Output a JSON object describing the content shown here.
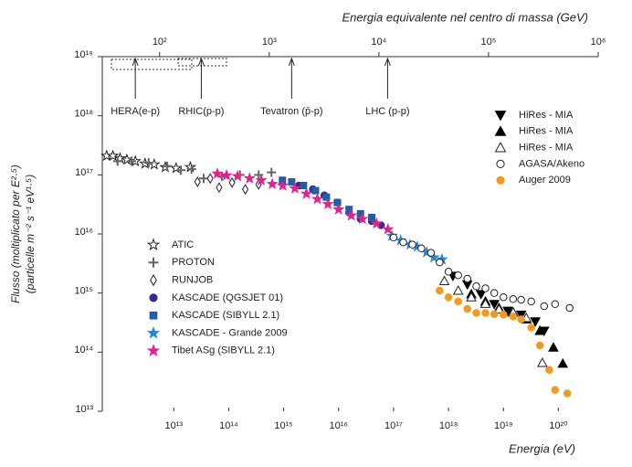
{
  "chart_data": {
    "type": "scatter",
    "x_label": "Energia (eV)",
    "x2_label": "Energia equivalente nel centro di massa (GeV)",
    "y_label": [
      "Flusso (moltiplicato per E²·⁵)",
      "(particelle m⁻² s⁻¹ eV¹·⁵)"
    ],
    "xscale": "log",
    "yscale": "log",
    "x2scale": "log",
    "xlim": [
      500000000000.0,
      5.3e+20
    ],
    "ylim": [
      10000000000000.0,
      1e+19
    ],
    "x2lim": [
      30,
      1000000.0
    ],
    "xticks": [
      {
        "value": 10000000000000.0,
        "label": "10¹³"
      },
      {
        "value": 100000000000000.0,
        "label": "10¹⁴"
      },
      {
        "value": 1000000000000000.0,
        "label": "10¹⁵"
      },
      {
        "value": 1e+16,
        "label": "10¹⁶"
      },
      {
        "value": 1e+17,
        "label": "10¹⁷"
      },
      {
        "value": 1e+18,
        "label": "10¹⁸"
      },
      {
        "value": 1e+19,
        "label": "10¹⁹"
      },
      {
        "value": 1e+20,
        "label": "10²⁰"
      }
    ],
    "yticks": [
      {
        "value": 10000000000000.0,
        "label": "10¹³"
      },
      {
        "value": 100000000000000.0,
        "label": "10¹⁴"
      },
      {
        "value": 1000000000000000.0,
        "label": "10¹⁵"
      },
      {
        "value": 1e+16,
        "label": "10¹⁶"
      },
      {
        "value": 1e+17,
        "label": "10¹⁷"
      },
      {
        "value": 1e+18,
        "label": "10¹⁸"
      },
      {
        "value": 1e+19,
        "label": "10¹⁹"
      }
    ],
    "x2ticks": [
      {
        "value": 100,
        "label": "10²"
      },
      {
        "value": 1000,
        "label": "10³"
      },
      {
        "value": 10000,
        "label": "10⁴"
      },
      {
        "value": 100000,
        "label": "10⁵"
      },
      {
        "value": 1000000,
        "label": "10⁶"
      }
    ],
    "annotations": [
      {
        "text": "HERA(e-p)",
        "x2": 60
      },
      {
        "text": "RHIC(p-p)",
        "x2": 240
      },
      {
        "text": "Tevatron (p̄-p)",
        "x2": 1600
      },
      {
        "text": "LHC (p-p)",
        "x2": 12000
      }
    ],
    "series": [
      {
        "name": "ATIC",
        "marker": "star",
        "color": "#222222",
        "filled": false,
        "legend": "center-left",
        "x": [
          600000000000.0,
          780000000000.0,
          1050000000000.0,
          1400000000000.0,
          2000000000000.0,
          3000000000000.0,
          4400000000000.0,
          7000000000000.0,
          11000000000000.0,
          20000000000000.0
        ],
        "values": [
          2.1e+17,
          2.1e+17,
          1.9e+17,
          1.8e+17,
          1.7e+17,
          1.55e+17,
          1.5e+17,
          1.35e+17,
          1.3e+17,
          1.35e+17
        ]
      },
      {
        "name": "PROTON",
        "marker": "plus",
        "color": "#666666",
        "filled": true,
        "legend": "center-left",
        "x": [
          950000000000.0,
          1700000000000.0,
          3500000000000.0,
          7600000000000.0,
          13500000000000.0,
          21000000000000.0,
          35000000000000.0,
          75000000000000.0,
          160000000000000.0,
          350000000000000.0,
          600000000000000.0
        ],
        "values": [
          1.7e+17,
          1.7e+17,
          1.6e+17,
          1.4e+17,
          1.2e+17,
          1.25e+17,
          8.7e+16,
          9.4e+16,
          1e+17,
          1e+17,
          1.1e+17
        ]
      },
      {
        "name": "RUNJOB",
        "marker": "diamond",
        "color": "#222222",
        "filled": false,
        "legend": "center-left",
        "x": [
          27000000000000.0,
          46000000000000.0,
          67000000000000.0,
          115000000000000.0,
          200000000000000.0,
          350000000000000.0
        ],
        "values": [
          7.6e+16,
          8.7e+16,
          6.1e+16,
          7.4e+16,
          5.7e+16,
          6.9e+16
        ]
      },
      {
        "name": "KASCADE (QGSJET 01)",
        "marker": "circle",
        "color": "#3b2a8c",
        "filled": true,
        "legend": "center-left",
        "x": [
          1900000000000000.0,
          3400000000000000.0,
          5500000000000000.0,
          9500000000000000.0,
          1.55e+16,
          2.5e+16,
          4e+16,
          5.9e+16
        ],
        "values": [
          6.6e+16,
          5.7e+16,
          4.5e+16,
          3.4e+16,
          2.3e+16,
          1.8e+16,
          1.65e+16,
          1.4e+16
        ]
      },
      {
        "name": "KASCADE (SIBYLL 2.1)",
        "marker": "square",
        "color": "#1f5fa8",
        "filled": true,
        "legend": "center-left",
        "x": [
          950000000000000.0,
          1400000000000000.0,
          2300000000000000.0,
          3800000000000000.0,
          6000000000000000.0,
          9500000000000000.0,
          1.55e+16,
          2.5e+16,
          4e+16
        ],
        "values": [
          8.1e+16,
          7.6e+16,
          6.6e+16,
          5.4e+16,
          4.2e+16,
          3.4e+16,
          2.6e+16,
          2.2e+16,
          1.9e+16
        ]
      },
      {
        "name": "KASCADE - Grande 2009",
        "marker": "star",
        "color": "#2a88cc",
        "filled": true,
        "legend": "center-left",
        "x": [
          9.3e+16,
          1.35e+17,
          2e+17,
          2.7e+17,
          4e+17,
          5.4e+17,
          7.6e+17
        ],
        "values": [
          9300000000000000.0,
          7800000000000000.0,
          6600000000000000.0,
          6100000000000000.0,
          4900000000000000.0,
          4000000000000000.0,
          3700000000000000.0
        ]
      },
      {
        "name": "Tibet ASg (SIBYLL 2.1)",
        "marker": "star",
        "color": "#e6218c",
        "filled": true,
        "legend": "center-left",
        "x": [
          62000000000000.0,
          91000000000000.0,
          145000000000000.0,
          240000000000000.0,
          390000000000000.0,
          620000000000000.0,
          960000000000000.0,
          1600000000000000.0,
          2600000000000000.0,
          4100000000000000.0,
          6400000000000000.0,
          1e+16,
          1.7e+16,
          2.7e+16,
          4.9e+16,
          7.9e+16
        ],
        "values": [
          1.05e+17,
          9.8e+16,
          9.5e+16,
          8.7e+16,
          8.1e+16,
          7e+16,
          6.6e+16,
          5.9e+16,
          4.8e+16,
          3.9e+16,
          3.2e+16,
          2.6e+16,
          2.05e+16,
          1.8e+16,
          1.5e+16,
          1.2e+16
        ]
      },
      {
        "name": "HiRes - MIA",
        "marker": "triangle-down",
        "color": "#000000",
        "filled": true,
        "legend": "upper-right",
        "x": [
          1.2e+18,
          2.2e+18,
          3.9e+18,
          6.8e+18,
          1.2e+19,
          2.1e+19,
          3.8e+19,
          5.5e+19
        ],
        "values": [
          1950000000000000.0,
          1400000000000000.0,
          960000000000000.0,
          650000000000000.0,
          500000000000000.0,
          430000000000000.0,
          330000000000000.0,
          230000000000000.0
        ]
      },
      {
        "name": "HiRes - MIA",
        "marker": "triangle-up",
        "color": "#000000",
        "filled": true,
        "legend": "upper-right",
        "x": [
          2.6e+18,
          4.7e+18,
          8.3e+18,
          1.5e+19,
          2.6e+19,
          4.6e+19,
          8.1e+19,
          1.2e+20
        ],
        "values": [
          960000000000000.0,
          720000000000000.0,
          560000000000000.0,
          470000000000000.0,
          360000000000000.0,
          230000000000000.0,
          120000000000000.0,
          64000000000000.0
        ]
      },
      {
        "name": "HiRes - MIA",
        "marker": "triangle-up",
        "color": "#000000",
        "filled": false,
        "legend": "upper-right",
        "x": [
          8.4e+17,
          1.5e+18,
          2.6e+18,
          4.7e+18,
          8.3e+18,
          1.5e+19,
          2.6e+19,
          5.1e+19
        ],
        "values": [
          1600000000000000.0,
          1100000000000000.0,
          850000000000000.0,
          660000000000000.0,
          530000000000000.0,
          470000000000000.0,
          380000000000000.0,
          66000000000000.0
        ]
      },
      {
        "name": "AGASA/Akeno",
        "marker": "circle",
        "color": "#000000",
        "filled": false,
        "legend": "upper-right",
        "x": [
          1e+17,
          1.5e+17,
          2.2e+17,
          3.2e+17,
          4.8e+17,
          6.9e+17,
          1e+18,
          1.5e+18,
          2.2e+18,
          3.2e+18,
          4.7e+18,
          6.8e+18,
          1e+19,
          1.5e+19,
          2.1e+19,
          3.2e+19,
          5.5e+19,
          8.7e+19,
          1.6e+20
        ],
        "values": [
          8700000000000000.0,
          7200000000000000.0,
          6600000000000000.0,
          5700000000000000.0,
          4800000000000000.0,
          3300000000000000.0,
          2300000000000000.0,
          2000000000000000.0,
          1750000000000000.0,
          1300000000000000.0,
          1200000000000000.0,
          1000000000000000.0,
          850000000000000.0,
          790000000000000.0,
          770000000000000.0,
          720000000000000.0,
          600000000000000.0,
          650000000000000.0,
          560000000000000.0
        ]
      },
      {
        "name": "Auger 2009",
        "marker": "circle",
        "color": "#f39a1d",
        "filled": true,
        "legend": "upper-right",
        "x": [
          6.9e+17,
          1e+18,
          1.5e+18,
          2.2e+18,
          3.2e+18,
          4.7e+18,
          6.8e+18,
          1e+19,
          1.5e+19,
          2.1e+19,
          3.2e+19,
          4.6e+19,
          6.8e+19,
          8.7e+19,
          1.45e+20
        ],
        "values": [
          1100000000000000.0,
          850000000000000.0,
          720000000000000.0,
          540000000000000.0,
          460000000000000.0,
          460000000000000.0,
          440000000000000.0,
          430000000000000.0,
          400000000000000.0,
          360000000000000.0,
          260000000000000.0,
          130000000000000.0,
          50000000000000.0,
          23000000000000.0,
          20000000000000.0
        ]
      }
    ]
  }
}
